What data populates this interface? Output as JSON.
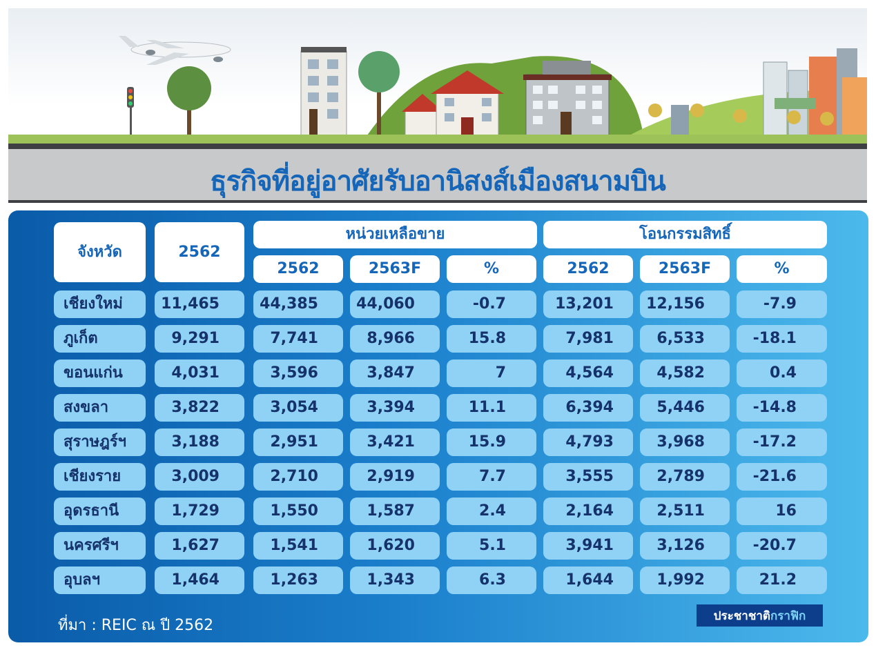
{
  "title": "ธุรกิจที่อยู่อาศัยรับอานิสงส์เมืองสนามบิน",
  "header": {
    "province": "จังหวัด",
    "year_col": "2562",
    "unsold_group": "หน่วยเหลือขาย",
    "transfer_group": "โอนกรรมสิทธิ์",
    "unsold_y1": "2562",
    "unsold_y2": "2563F",
    "unsold_pct": "%",
    "transfer_y1": "2562",
    "transfer_y2": "2563F",
    "transfer_pct": "%"
  },
  "rows": [
    {
      "province": "เชียงใหม่",
      "c2562": "11,465",
      "u1": "44,385",
      "u2": "44,060",
      "up": "-0.7",
      "t1": "13,201",
      "t2": "12,156",
      "tp": "-7.9"
    },
    {
      "province": "ภูเก็ต",
      "c2562": "9,291",
      "u1": "7,741",
      "u2": "8,966",
      "up": "15.8",
      "t1": "7,981",
      "t2": "6,533",
      "tp": "-18.1"
    },
    {
      "province": "ขอนแก่น",
      "c2562": "4,031",
      "u1": "3,596",
      "u2": "3,847",
      "up": "7",
      "t1": "4,564",
      "t2": "4,582",
      "tp": "0.4"
    },
    {
      "province": "สงขลา",
      "c2562": "3,822",
      "u1": "3,054",
      "u2": "3,394",
      "up": "11.1",
      "t1": "6,394",
      "t2": "5,446",
      "tp": "-14.8"
    },
    {
      "province": "สุราษฎร์ฯ",
      "c2562": "3,188",
      "u1": "2,951",
      "u2": "3,421",
      "up": "15.9",
      "t1": "4,793",
      "t2": "3,968",
      "tp": "-17.2"
    },
    {
      "province": "เชียงราย",
      "c2562": "3,009",
      "u1": "2,710",
      "u2": "2,919",
      "up": "7.7",
      "t1": "3,555",
      "t2": "2,789",
      "tp": "-21.6"
    },
    {
      "province": "อุดรธานี",
      "c2562": "1,729",
      "u1": "1,550",
      "u2": "1,587",
      "up": "2.4",
      "t1": "2,164",
      "t2": "2,511",
      "tp": "16"
    },
    {
      "province": "นครศรีฯ",
      "c2562": "1,627",
      "u1": "1,541",
      "u2": "1,620",
      "up": "5.1",
      "t1": "3,941",
      "t2": "3,126",
      "tp": "-20.7"
    },
    {
      "province": "อุบลฯ",
      "c2562": "1,464",
      "u1": "1,263",
      "u2": "1,343",
      "up": "6.3",
      "t1": "1,644",
      "t2": "1,992",
      "tp": "21.2"
    }
  ],
  "source": "ที่มา : REIC ณ ปี 2562",
  "brand": {
    "part1": "ประชาชาติ",
    "part2": "กราฟิก"
  },
  "colors": {
    "title_blue": "#1565b8",
    "cell_blue": "#8fd2f5",
    "panel_dark": "#0a5ba8",
    "panel_light": "#4cb9ec",
    "grass": "#9dc259"
  }
}
